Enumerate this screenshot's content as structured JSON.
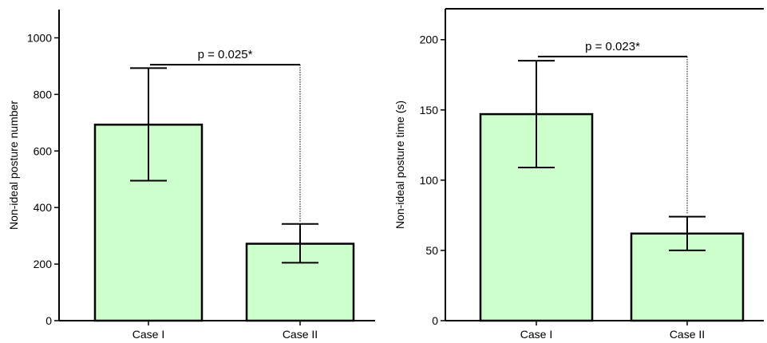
{
  "bar_fill": "#ccffcc",
  "stroke_color": "#000000",
  "chart_data": [
    {
      "type": "bar",
      "categories": [
        "Case I",
        "Case II"
      ],
      "values": [
        693,
        272
      ],
      "error_low": [
        495,
        205
      ],
      "error_high": [
        893,
        342
      ],
      "ylabel": "Non-ideal posture number",
      "ylim": [
        0,
        1100
      ],
      "yticks": [
        0,
        200,
        400,
        600,
        800,
        1000
      ],
      "grid": false,
      "frame": "open",
      "annotation": {
        "text": "p = 0.025*",
        "bracket_y": 905
      }
    },
    {
      "type": "bar",
      "categories": [
        "Case I",
        "Case II"
      ],
      "values": [
        147,
        62
      ],
      "error_low": [
        109,
        50
      ],
      "error_high": [
        185,
        74
      ],
      "ylabel": "Non-ideal posture time  (s)",
      "ylim": [
        0,
        222
      ],
      "yticks": [
        0,
        50,
        100,
        150,
        200
      ],
      "grid": false,
      "frame": "boxed",
      "annotation": {
        "text": "p = 0.023*",
        "bracket_y": 188
      }
    }
  ]
}
